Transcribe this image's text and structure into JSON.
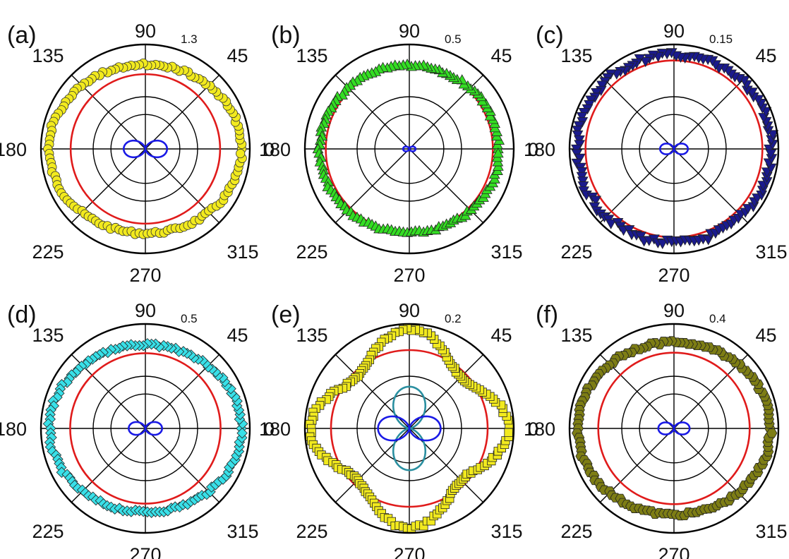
{
  "figure": {
    "angle_ticks": [
      "0",
      "45",
      "90",
      "135",
      "180",
      "225",
      "270",
      "315"
    ]
  },
  "chart_data": [
    {
      "type": "scatter",
      "coordinate_system": "polar",
      "panel_label": "(a)",
      "r_max_label": "1.3",
      "rlim": [
        0,
        1.3
      ],
      "angle_ticks_deg": [
        0,
        45,
        90,
        135,
        180,
        225,
        270,
        315
      ],
      "grid": true,
      "marker": "circle",
      "marker_color": "#f2ea1e",
      "measured": {
        "shape": "ellipse",
        "r_at_0_deg": 1.2,
        "r_at_90_deg": 1.05
      },
      "reference_circle": {
        "color": "#e01b1b",
        "radius": 0.93
      },
      "lobes": [
        {
          "color": "#1a1ae6",
          "orientation_deg": 0,
          "r_max": 0.27
        }
      ]
    },
    {
      "type": "scatter",
      "coordinate_system": "polar",
      "panel_label": "(b)",
      "r_max_label": "0.5",
      "rlim": [
        0,
        0.5
      ],
      "angle_ticks_deg": [
        0,
        45,
        90,
        135,
        180,
        225,
        270,
        315
      ],
      "grid": true,
      "marker": "triangle-up",
      "marker_color": "#33dd22",
      "measured": {
        "shape": "ellipse",
        "r_at_0_deg": 0.43,
        "r_at_90_deg": 0.4
      },
      "reference_circle": {
        "color": "#e01b1b",
        "radius": 0.4
      },
      "lobes": [
        {
          "color": "#1a1ae6",
          "orientation_deg": 0,
          "r_max": 0.03
        }
      ]
    },
    {
      "type": "scatter",
      "coordinate_system": "polar",
      "panel_label": "(c)",
      "r_max_label": "0.15",
      "rlim": [
        0,
        0.15
      ],
      "angle_ticks_deg": [
        0,
        45,
        90,
        135,
        180,
        225,
        270,
        315
      ],
      "grid": true,
      "marker": "triangle-down",
      "marker_color": "#1a1a8c",
      "measured": {
        "shape": "ellipse",
        "r_at_0_deg": 0.14,
        "r_at_90_deg": 0.135
      },
      "reference_circle": {
        "color": "#e01b1b",
        "radius": 0.127
      },
      "lobes": [
        {
          "color": "#1a1ae6",
          "orientation_deg": 0,
          "r_max": 0.02
        }
      ]
    },
    {
      "type": "scatter",
      "coordinate_system": "polar",
      "panel_label": "(d)",
      "r_max_label": "0.5",
      "rlim": [
        0,
        0.5
      ],
      "angle_ticks_deg": [
        0,
        45,
        90,
        135,
        180,
        225,
        270,
        315
      ],
      "grid": true,
      "marker": "diamond",
      "marker_color": "#38e0e8",
      "measured": {
        "shape": "ellipse",
        "r_at_0_deg": 0.46,
        "r_at_90_deg": 0.4
      },
      "reference_circle": {
        "color": "#e01b1b",
        "radius": 0.36
      },
      "lobes": [
        {
          "color": "#1a1ae6",
          "orientation_deg": 0,
          "r_max": 0.08
        }
      ]
    },
    {
      "type": "scatter",
      "coordinate_system": "polar",
      "panel_label": "(e)",
      "r_max_label": "0.2",
      "rlim": [
        0,
        0.2
      ],
      "angle_ticks_deg": [
        0,
        45,
        90,
        135,
        180,
        225,
        270,
        315
      ],
      "grid": true,
      "marker": "square",
      "marker_color": "#f2ea1e",
      "measured": {
        "shape": "four-lobed",
        "r_at_0_deg": 0.19,
        "r_at_90_deg": 0.19,
        "r_at_45_deg": 0.14
      },
      "reference_circle": {
        "color": "#e01b1b",
        "radius": 0.15
      },
      "lobes": [
        {
          "color": "#2a8fa0",
          "orientation_deg": 90,
          "r_max": 0.08
        },
        {
          "color": "#1a1ae6",
          "orientation_deg": 0,
          "r_max": 0.06
        }
      ]
    },
    {
      "type": "scatter",
      "coordinate_system": "polar",
      "panel_label": "(f)",
      "r_max_label": "0.4",
      "rlim": [
        0,
        0.4
      ],
      "angle_ticks_deg": [
        0,
        45,
        90,
        135,
        180,
        225,
        270,
        315
      ],
      "grid": true,
      "marker": "hexagon",
      "marker_color": "#7d7d14",
      "measured": {
        "shape": "ellipse",
        "r_at_0_deg": 0.37,
        "r_at_90_deg": 0.33
      },
      "reference_circle": {
        "color": "#e01b1b",
        "radius": 0.29
      },
      "lobes": [
        {
          "color": "#1a1ae6",
          "orientation_deg": 0,
          "r_max": 0.06
        }
      ]
    }
  ]
}
